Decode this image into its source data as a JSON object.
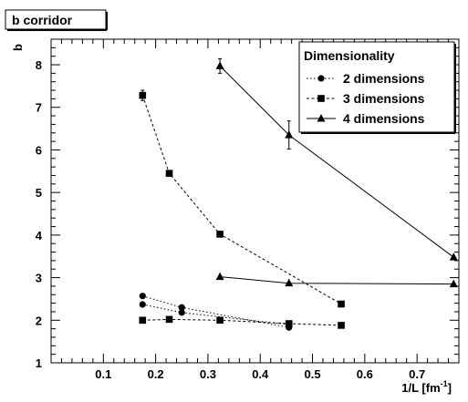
{
  "chart_data": {
    "type": "line",
    "title": "b corridor",
    "xlabel": "1/L [fm",
    "xlabel_sup": "-1",
    "xlabel_tail": "]",
    "ylabel": "b",
    "xlim": [
      0.0,
      0.78
    ],
    "ylim": [
      1.0,
      8.6
    ],
    "x_ticks": [
      0.1,
      0.2,
      0.3,
      0.4,
      0.5,
      0.6,
      0.7
    ],
    "x_tick_labels": [
      "0.1",
      "0.2",
      "0.3",
      "0.4",
      "0.5",
      "0.6",
      "0.7"
    ],
    "y_ticks": [
      1,
      2,
      3,
      4,
      5,
      6,
      7,
      8
    ],
    "y_tick_labels": [
      "1",
      "2",
      "3",
      "4",
      "5",
      "6",
      "7",
      "8"
    ],
    "grid": false,
    "legend": {
      "title": "Dimensionality",
      "placement": "top-right",
      "entries": [
        "2 dimensions",
        "3 dimensions",
        "4 dimensions"
      ]
    },
    "series": [
      {
        "name": "2 dimensions",
        "marker": "circle",
        "line": "dotted",
        "lines": [
          [
            [
              0.175,
              2.57
            ],
            [
              0.25,
              2.3
            ],
            [
              0.455,
              1.83
            ]
          ],
          [
            [
              0.175,
              2.37
            ],
            [
              0.25,
              2.18
            ],
            [
              0.455,
              1.9
            ]
          ]
        ]
      },
      {
        "name": "3 dimensions",
        "marker": "square",
        "line": "dashed",
        "lines": [
          [
            [
              0.175,
              7.28
            ],
            [
              0.226,
              5.45
            ],
            [
              0.323,
              4.02
            ],
            [
              0.555,
              2.38
            ]
          ],
          [
            [
              0.175,
              2.0
            ],
            [
              0.226,
              2.02
            ],
            [
              0.323,
              2.0
            ],
            [
              0.455,
              1.92
            ],
            [
              0.555,
              1.88
            ]
          ]
        ],
        "error_bars": [
          [
            0.175,
            7.28,
            0.12
          ]
        ]
      },
      {
        "name": "4 dimensions",
        "marker": "triangle",
        "line": "solid",
        "lines": [
          [
            [
              0.323,
              7.97
            ],
            [
              0.455,
              6.35
            ],
            [
              0.77,
              3.48
            ]
          ],
          [
            [
              0.323,
              3.02
            ],
            [
              0.455,
              2.87
            ],
            [
              0.77,
              2.85
            ]
          ]
        ],
        "error_bars": [
          [
            0.323,
            7.97,
            0.17
          ],
          [
            0.455,
            6.35,
            0.33
          ]
        ]
      }
    ]
  }
}
